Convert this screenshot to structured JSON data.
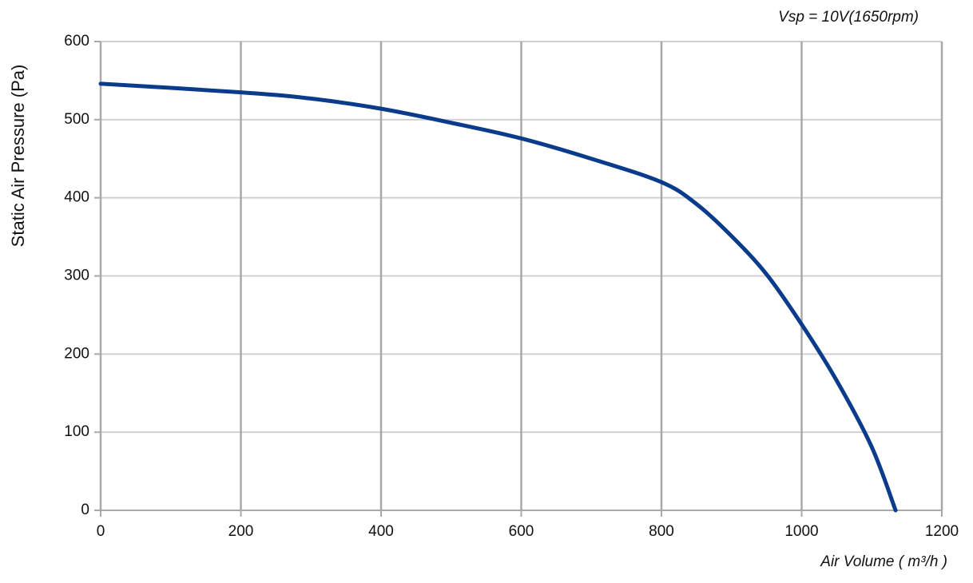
{
  "chart_data": {
    "type": "line",
    "annotation": "Vsp = 10V(1650rpm)",
    "x_label": "Air Volume ( m³/h )",
    "y_label": "Static Air Pressure  (Pa)",
    "x": [
      0,
      200,
      300,
      400,
      500,
      600,
      700,
      800,
      850,
      900,
      950,
      1000,
      1050,
      1100,
      1134
    ],
    "series": [
      {
        "name": "Vsp = 10V",
        "color": "#0b3c8c",
        "values": [
          546,
          535,
          527,
          514,
          496,
          476,
          450,
          420,
          392,
          351,
          302,
          238,
          166,
          81,
          0
        ]
      }
    ],
    "xlim": [
      0,
      1200
    ],
    "xticks": [
      0,
      200,
      400,
      600,
      800,
      1000,
      1200
    ],
    "ylim": [
      0,
      600
    ],
    "yticks": [
      0,
      100,
      200,
      300,
      400,
      500,
      600
    ],
    "grid": true
  }
}
